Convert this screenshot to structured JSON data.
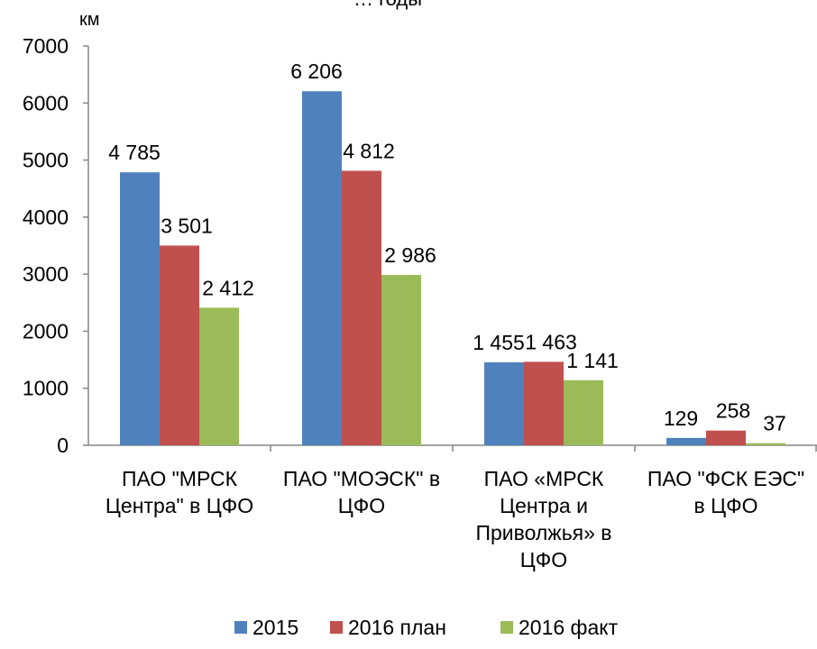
{
  "chart_data": {
    "type": "bar",
    "title": "… годы",
    "ylabel": "км",
    "ylim": [
      0,
      7000
    ],
    "yticks": [
      0,
      1000,
      2000,
      3000,
      4000,
      5000,
      6000,
      7000
    ],
    "grid": false,
    "legend_position": "bottom",
    "categories": [
      [
        "ПАО \"МРСК",
        "Центра\" в ЦФО"
      ],
      [
        "ПАО \"МОЭСК\" в",
        "ЦФО"
      ],
      [
        "ПАО «МРСК",
        "Центра и",
        "Приволжья» в",
        "ЦФО"
      ],
      [
        "ПАО \"ФСК ЕЭС\"",
        "в ЦФО"
      ]
    ],
    "series": [
      {
        "name": "2015",
        "color": "#4f81bd",
        "values": [
          4785,
          6206,
          1455,
          129
        ],
        "labels": [
          "4 785",
          "6 206",
          "1 455",
          "129"
        ]
      },
      {
        "name": "2016 план",
        "color": "#c0504d",
        "values": [
          3501,
          4812,
          1463,
          258
        ],
        "labels": [
          "3 501",
          "4 812",
          "1 463",
          "258"
        ]
      },
      {
        "name": "2016 факт",
        "color": "#9bbb59",
        "values": [
          2412,
          2986,
          1141,
          37
        ],
        "labels": [
          "2 412",
          "2 986",
          "1 141",
          "37"
        ]
      }
    ]
  }
}
